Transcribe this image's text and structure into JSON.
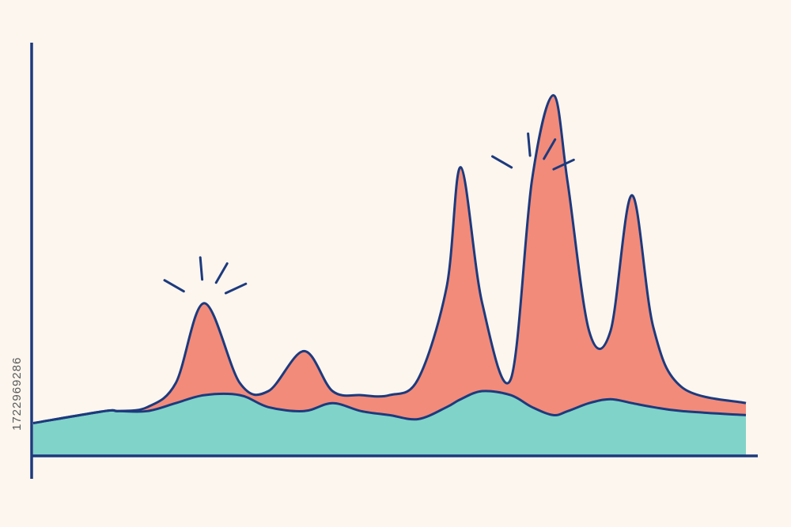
{
  "chart_data": {
    "type": "area",
    "title": "",
    "xlabel": "",
    "ylabel": "",
    "grid": false,
    "legend": "none",
    "xlim": [
      0,
      100
    ],
    "ylim": [
      0,
      100
    ],
    "x": [
      0,
      10,
      12,
      16,
      20,
      24,
      29,
      33,
      38,
      42,
      46,
      50,
      54,
      58,
      60,
      63,
      67,
      70,
      73,
      75,
      78,
      81,
      84,
      87,
      91,
      100
    ],
    "series": [
      {
        "stack_order": 1,
        "color": "#80d3c8",
        "values": [
          8,
          11,
          11,
          11,
          13,
          15,
          15,
          12,
          11,
          13,
          11,
          10,
          9,
          12,
          14,
          16,
          15,
          12,
          10,
          11,
          13,
          14,
          13,
          12,
          11,
          10
        ]
      },
      {
        "stack_order": 2,
        "color": "#f28b7a",
        "values": [
          0,
          0,
          0,
          1,
          5,
          23,
          3,
          4,
          15,
          3,
          4,
          5,
          10,
          30,
          58,
          22,
          4,
          57,
          80,
          57,
          18,
          17,
          52,
          20,
          6,
          3
        ]
      }
    ],
    "annotations": [
      {
        "kind": "burst-lines",
        "at_x": 24
      },
      {
        "kind": "burst-lines",
        "at_x": 70
      }
    ]
  },
  "colors": {
    "background": "#fcf6ee",
    "axis": "#1d3a7d",
    "teal_fill": "#80d3c8",
    "coral_fill": "#f28b7a",
    "outline": "#1d3a7d"
  },
  "watermark": {
    "id_text": "1722969286"
  }
}
